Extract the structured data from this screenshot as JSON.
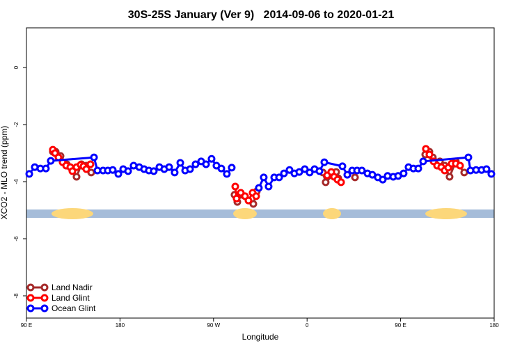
{
  "chart_data": {
    "type": "line",
    "title": "30S-25S January (Ver 9)   2014-09-06 to 2020-01-21",
    "xlabel": "Longitude",
    "ylabel": "XCO2 - MLO trend (ppm)",
    "xlim": [
      90,
      540
    ],
    "xticks": [
      {
        "value": 90,
        "label": "90 E"
      },
      {
        "value": 180,
        "label": "180"
      },
      {
        "value": 270,
        "label": "90 W"
      },
      {
        "value": 360,
        "label": "0"
      },
      {
        "value": 450,
        "label": "90 E"
      },
      {
        "value": 540,
        "label": "180"
      }
    ],
    "ylim": [
      -8.78,
      1.39
    ],
    "yticks": [
      0,
      -2,
      -4,
      -6,
      -8
    ],
    "legend": "bottomleft",
    "series": [
      {
        "name": "Land Nadir",
        "color": "#a52a2a",
        "x": [
          115.4,
          118.1,
          122.8,
          128.8,
          138.2,
          142.9,
          147.6,
          152.3,
          null,
          290.2,
          292.9,
          296.2,
          308.3,
          311.6,
          null,
          375.2,
          377.9,
          388.0,
          390.0,
          null,
          406.1,
          null,
          473.7,
          477.7,
          481.0,
          487.8,
          492.4,
          497.1,
          503.1,
          511.2
        ],
        "values": [
          -2.95,
          -2.95,
          -3.1,
          -3.39,
          -3.83,
          -3.39,
          -3.44,
          -3.68,
          null,
          -4.46,
          -4.71,
          -4.46,
          -4.78,
          -4.34,
          null,
          -3.68,
          -4.02,
          -3.66,
          -3.88,
          null,
          -3.85,
          null,
          -3.05,
          -2.95,
          -3.15,
          -3.29,
          -3.44,
          -3.83,
          -3.29,
          -3.68
        ]
      },
      {
        "name": "Land Glint",
        "color": "#ff0000",
        "x": [
          115.4,
          117.5,
          120.8,
          124.8,
          128.2,
          132.2,
          134.2,
          138.2,
          142.2,
          144.9,
          147.6,
          151.6,
          null,
          290.9,
          292.2,
          296.2,
          300.3,
          303.6,
          307.6,
          311.0,
          null,
          379.3,
          383.3,
          386.0,
          389.3,
          392.7,
          null,
          474.3,
          477.7,
          481.7,
          485.1,
          489.1,
          492.4,
          495.8,
          499.1,
          503.1,
          507.2
        ],
        "values": [
          -2.88,
          -3.0,
          -3.15,
          -3.32,
          -3.44,
          -3.49,
          -3.63,
          -3.49,
          -3.41,
          -3.46,
          -3.56,
          -3.39,
          null,
          -4.17,
          -4.59,
          -4.39,
          -4.51,
          -4.66,
          -4.39,
          -4.51,
          null,
          -3.78,
          -3.66,
          -3.83,
          -3.93,
          -4.02,
          null,
          -2.85,
          -3.05,
          -3.29,
          -3.44,
          -3.49,
          -3.61,
          -3.51,
          -3.37,
          -3.37,
          -3.44
        ]
      },
      {
        "name": "Ocean Glint",
        "color": "#0000ff",
        "x": [
          92.7,
          98.0,
          103.4,
          108.7,
          113.4,
          155.0,
          158.3,
          163.7,
          168.3,
          173.0,
          178.4,
          183.1,
          187.8,
          193.1,
          198.5,
          203.2,
          207.8,
          212.5,
          217.9,
          222.6,
          227.3,
          232.6,
          238.0,
          242.7,
          247.4,
          252.7,
          258.1,
          262.8,
          268.1,
          272.8,
          277.5,
          282.8,
          287.5,
          null,
          313.6,
          318.3,
          323.0,
          328.4,
          333.1,
          337.8,
          343.1,
          347.8,
          352.5,
          357.8,
          362.5,
          367.2,
          371.9,
          376.6,
          394.0,
          398.7,
          403.4,
          408.1,
          412.7,
          418.1,
          422.8,
          428.1,
          432.8,
          437.5,
          442.9,
          447.6,
          452.9,
          457.6,
          462.3,
          467.0,
          471.7,
          515.2,
          517.2,
          522.6,
          527.9,
          532.6,
          537.3
        ],
        "values": [
          -3.73,
          -3.49,
          -3.54,
          -3.54,
          -3.27,
          -3.15,
          -3.61,
          -3.61,
          -3.61,
          -3.59,
          -3.73,
          -3.56,
          -3.63,
          -3.44,
          -3.49,
          -3.56,
          -3.61,
          -3.63,
          -3.49,
          -3.56,
          -3.49,
          -3.68,
          -3.34,
          -3.61,
          -3.56,
          -3.39,
          -3.29,
          -3.39,
          -3.2,
          -3.44,
          -3.54,
          -3.73,
          -3.51,
          null,
          -4.22,
          -3.85,
          -4.17,
          -3.85,
          -3.85,
          -3.71,
          -3.59,
          -3.71,
          -3.66,
          -3.56,
          -3.68,
          -3.56,
          -3.63,
          -3.32,
          -3.46,
          -3.76,
          -3.61,
          -3.61,
          -3.61,
          -3.71,
          -3.76,
          -3.85,
          -3.93,
          -3.8,
          -3.83,
          -3.8,
          -3.71,
          -3.49,
          -3.54,
          -3.54,
          -3.29,
          -3.15,
          -3.61,
          -3.59,
          -3.59,
          -3.56,
          -3.73
        ]
      }
    ]
  }
}
